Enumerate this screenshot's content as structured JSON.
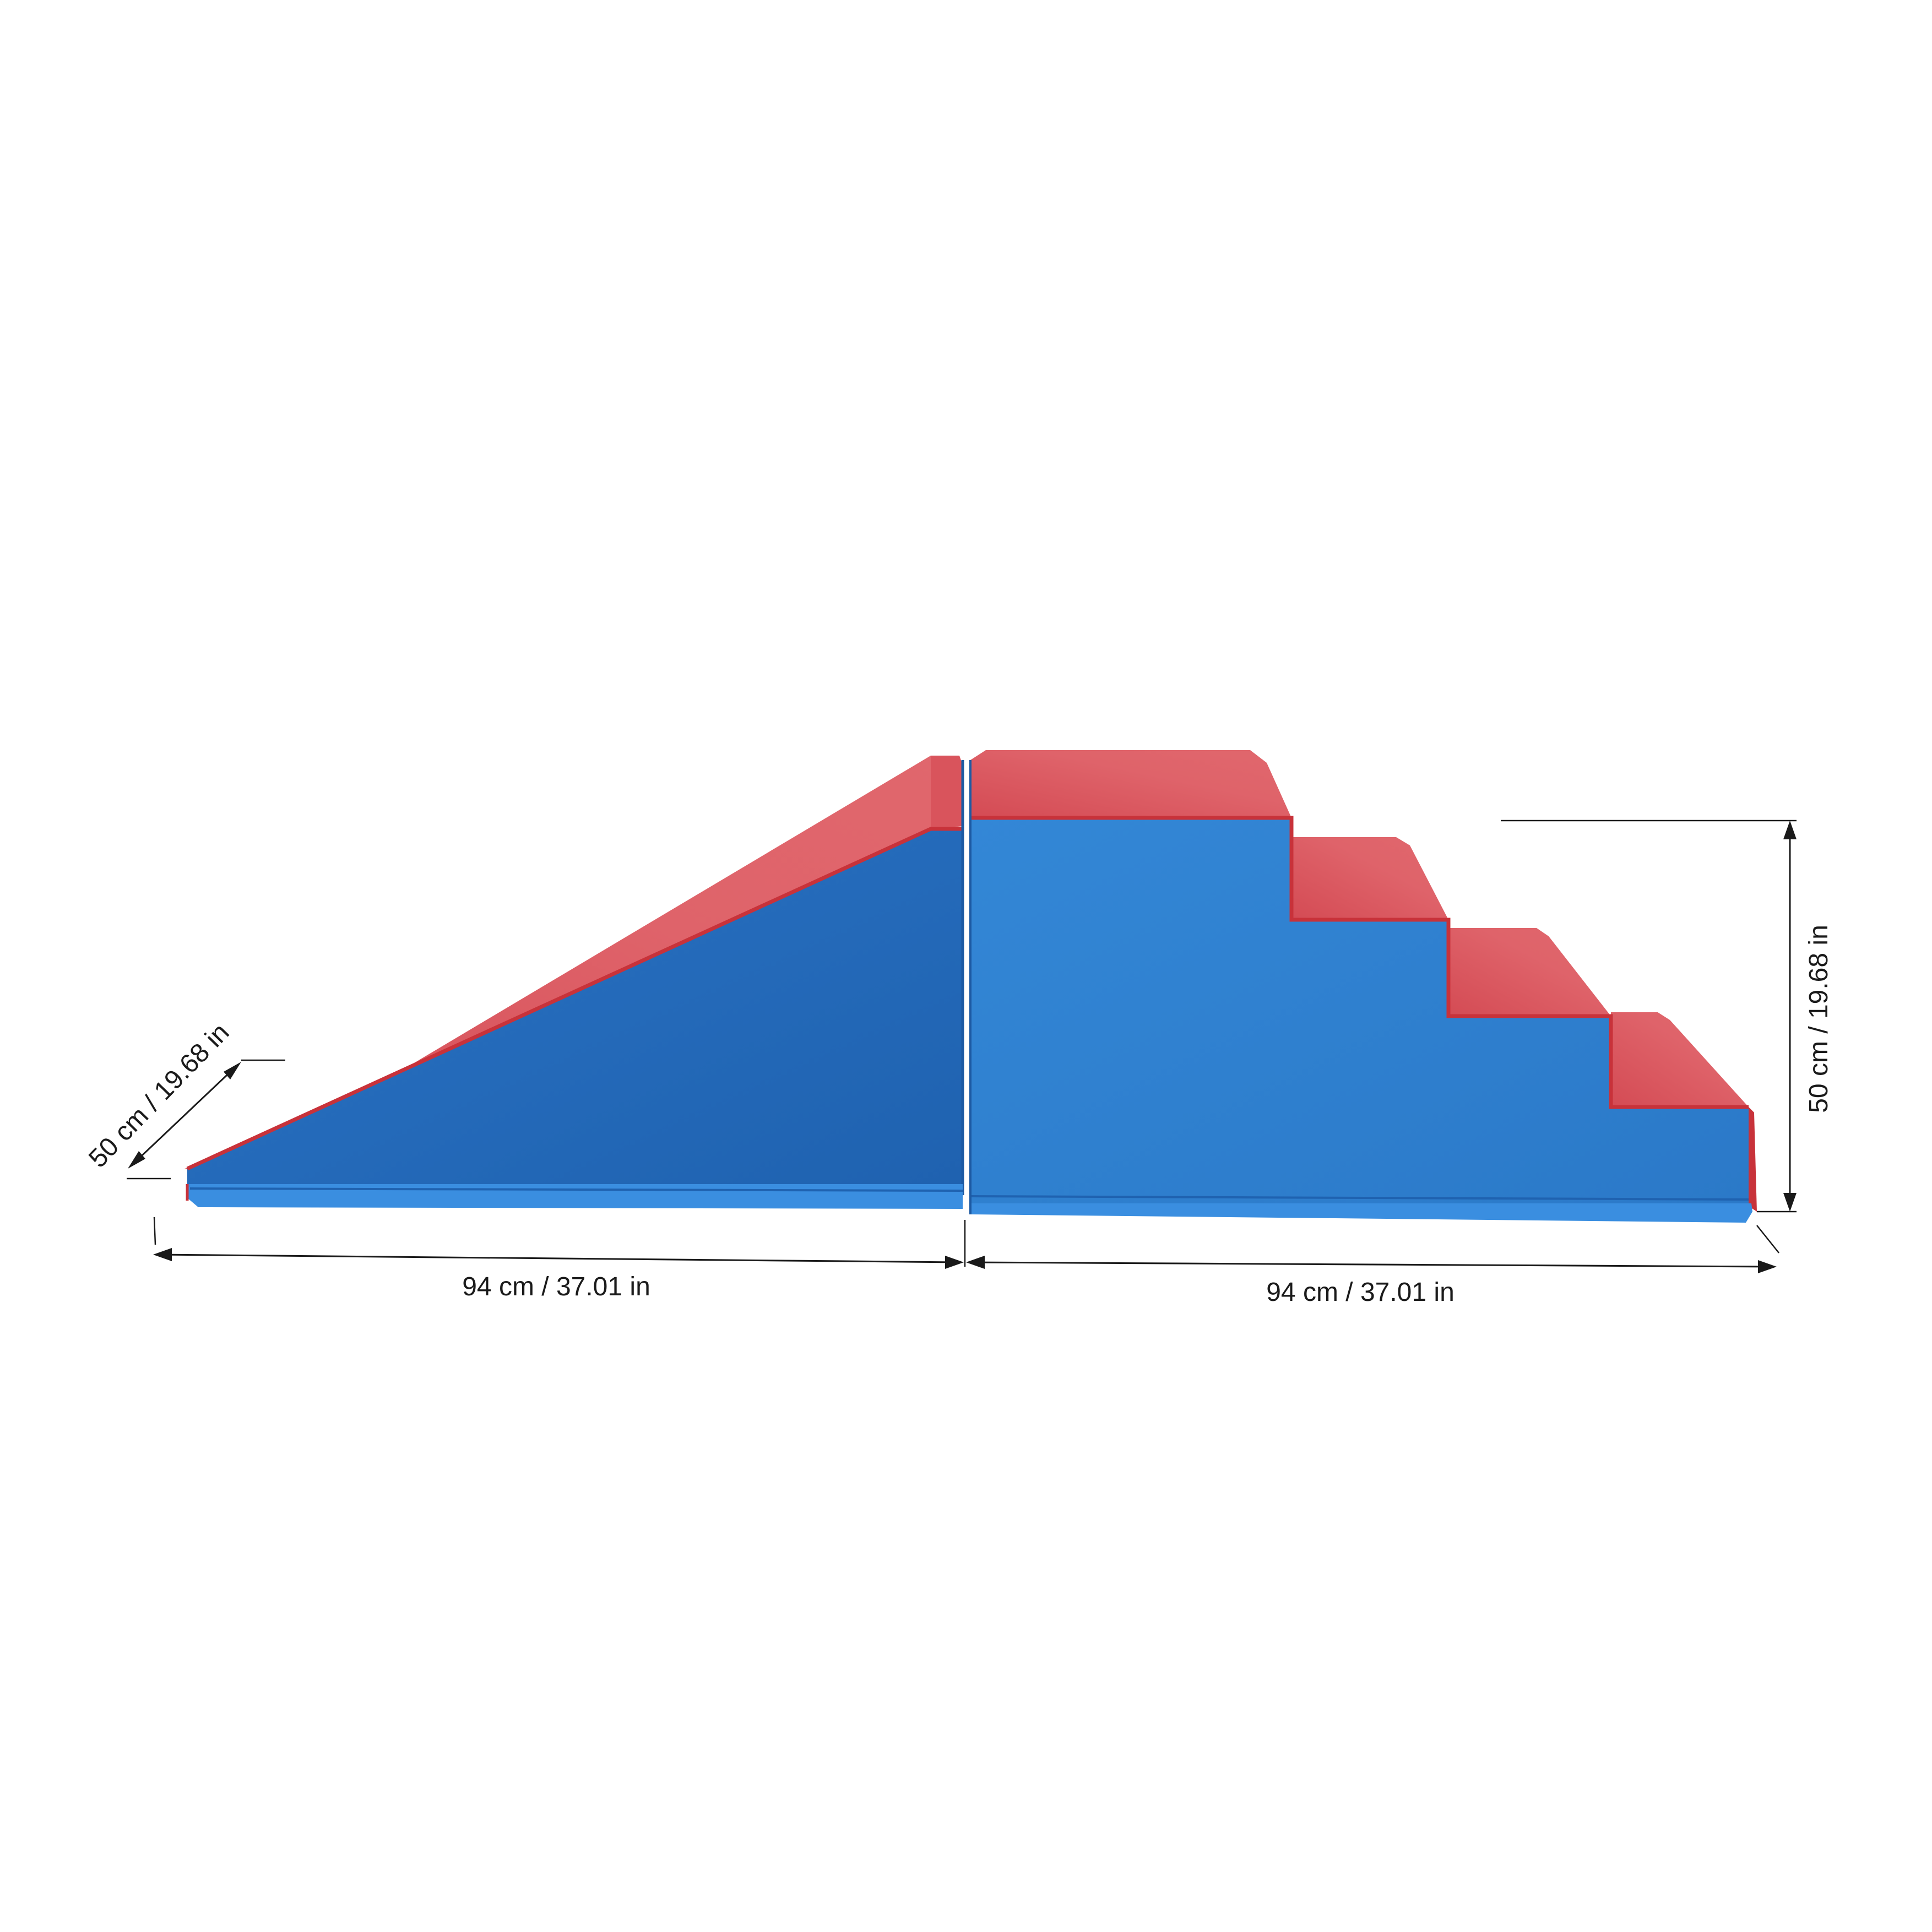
{
  "dimensions": {
    "depth_label": "50 cm / 19.68 in",
    "ramp_length_label": "94 cm / 37.01 in",
    "stairs_length_label": "94 cm / 37.01 in",
    "height_label": "50 cm / 19.68 in"
  },
  "colors": {
    "side_blue": "#2f7fd0",
    "side_blue_dark": "#2366b4",
    "top_red": "#d9545c",
    "top_red_light": "#e26a70",
    "edge_red": "#c8323a",
    "base_blue": "#3a8ee0",
    "background": "#ffffff",
    "line": "#1a1a1a"
  }
}
